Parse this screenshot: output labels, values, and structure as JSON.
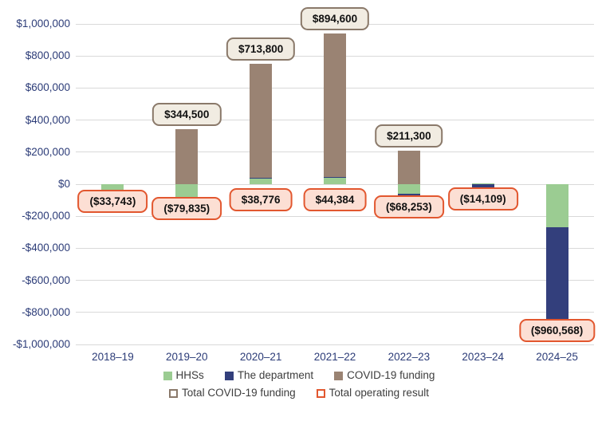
{
  "chart_data": {
    "type": "bar",
    "stacked": true,
    "title": "",
    "xlabel": "",
    "ylabel": "",
    "grid": true,
    "legend_position": "bottom",
    "ylim": [
      -1000000,
      1000000
    ],
    "y_tick_step": 200000,
    "y_ticks": [
      "$1,000,000",
      "$800,000",
      "$600,000",
      "$400,000",
      "$200,000",
      "$0",
      "-$200,000",
      "-$400,000",
      "-$600,000",
      "-$800,000",
      "-$1,000,000"
    ],
    "categories": [
      "2018–19",
      "2019–20",
      "2020–21",
      "2021–22",
      "2022–23",
      "2023–24",
      "2024–25"
    ],
    "series": [
      {
        "name": "HHSs",
        "color_key": "hhs",
        "values": [
          -33743,
          -79835,
          35000,
          40000,
          -62000,
          5000,
          -270000
        ]
      },
      {
        "name": "The department",
        "color_key": "department",
        "values": [
          0,
          0,
          3776,
          4384,
          -6253,
          -19109,
          -690568
        ]
      },
      {
        "name": "COVID-19 funding",
        "color_key": "covid",
        "values": [
          0,
          344500,
          713800,
          894600,
          211300,
          0,
          0
        ]
      }
    ],
    "total_covid_funding_values": [
      null,
      344500,
      713800,
      894600,
      211300,
      null,
      null
    ],
    "total_covid_funding_labels": [
      "",
      "$344,500",
      "$713,800",
      "$894,600",
      "$211,300",
      "",
      ""
    ],
    "total_operating_result_values": [
      -33743,
      -79835,
      38776,
      44384,
      -68253,
      -14109,
      -960568
    ],
    "total_operating_result_labels": [
      "($33,743)",
      "($79,835)",
      "$38,776",
      "$44,384",
      "($68,253)",
      "($14,109)",
      "($960,568)"
    ],
    "legend": [
      {
        "label": "HHSs",
        "swatch": "filled",
        "color_key": "hhs"
      },
      {
        "label": "The department",
        "swatch": "filled",
        "color_key": "department"
      },
      {
        "label": "COVID-19 funding",
        "swatch": "filled",
        "color_key": "covid"
      },
      {
        "label": "Total COVID-19 funding",
        "swatch": "outline",
        "color_key": "covid_label_border"
      },
      {
        "label": "Total operating result",
        "swatch": "outline",
        "color_key": "operating_label_border"
      }
    ],
    "colors": {
      "hhs": "#9bcc92",
      "department": "#333f7c",
      "covid": "#9a8373",
      "covid_label_bg": "#f1ece2",
      "covid_label_border": "#8a796a",
      "operating_label_bg": "#fcdfd4",
      "operating_label_border": "#e2572f",
      "axis_text": "#2c3c78",
      "gridline": "#d9d9d9",
      "label_text": "#111111"
    }
  }
}
